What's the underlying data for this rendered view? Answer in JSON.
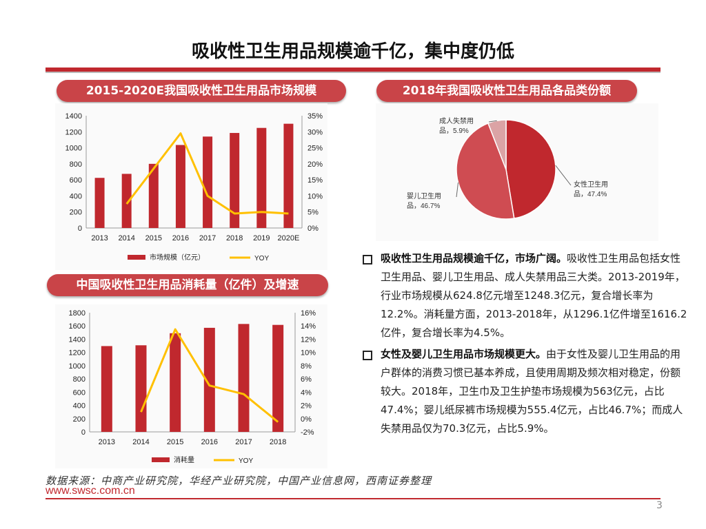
{
  "title": "吸收性卫生用品规模逾千亿，集中度仍低",
  "chart1_badge": "2015-2020E我国吸收性卫生用品市场规模",
  "chart2_badge": "中国吸收性卫生用品消耗量（亿件）及增速",
  "chart3_badge": "2018年我国吸收性卫生用品各品类份额",
  "chart_data": [
    {
      "type": "bar",
      "title": "2015-2020E我国吸收性卫生用品市场规模",
      "categories": [
        "2013",
        "2014",
        "2015",
        "2016",
        "2017",
        "2018",
        "2019",
        "2020E"
      ],
      "series": [
        {
          "name": "市场规模（亿元）",
          "values": [
            625,
            675,
            800,
            1035,
            1140,
            1185,
            1248,
            1300
          ],
          "axis": "left"
        },
        {
          "name": "YOY",
          "type": "line",
          "values_pct": [
            null,
            7.5,
            18.5,
            29.5,
            10.0,
            4.5,
            5.0,
            4.5
          ],
          "axis": "right"
        }
      ],
      "left_axis": {
        "ylim": [
          0,
          1400
        ],
        "ticks": [
          "0",
          "200",
          "400",
          "600",
          "800",
          "1000",
          "1200",
          "1400"
        ]
      },
      "right_axis": {
        "ylim": [
          0,
          35
        ],
        "ticks": [
          "0%",
          "5%",
          "10%",
          "15%",
          "20%",
          "25%",
          "30%",
          "35%"
        ]
      },
      "legend": {
        "bar": "市场规模（亿元）",
        "line": "YOY"
      }
    },
    {
      "type": "bar",
      "title": "中国吸收性卫生用品消耗量（亿件）及增速",
      "categories": [
        "2013",
        "2014",
        "2015",
        "2016",
        "2017",
        "2018"
      ],
      "series": [
        {
          "name": "消耗量",
          "values": [
            1296,
            1308,
            1490,
            1572,
            1630,
            1616
          ],
          "axis": "left"
        },
        {
          "name": "YOY",
          "type": "line",
          "values_pct": [
            null,
            1.0,
            13.5,
            5.0,
            3.7,
            -0.5
          ],
          "axis": "right"
        }
      ],
      "left_axis": {
        "ylim": [
          0,
          1800
        ],
        "ticks": [
          "0",
          "200",
          "400",
          "600",
          "800",
          "1000",
          "1200",
          "1400",
          "1600",
          "1800"
        ]
      },
      "right_axis": {
        "ylim": [
          -2,
          16
        ],
        "ticks": [
          "-2%",
          "0%",
          "2%",
          "4%",
          "6%",
          "8%",
          "10%",
          "12%",
          "14%",
          "16%"
        ]
      },
      "legend": {
        "bar": "消耗量",
        "line": "YOY"
      }
    },
    {
      "type": "pie",
      "title": "2018年我国吸收性卫生用品各品类份额",
      "slices": [
        {
          "label": "女性卫生用品",
          "value": 47.4,
          "text": "女性卫生用品，47.4%",
          "line1": "女性卫生用",
          "line2": "品，47.4%"
        },
        {
          "label": "婴儿卫生用品",
          "value": 46.7,
          "text": "婴儿卫生用品，46.7%",
          "line1": "婴儿卫生用",
          "line2": "品，46.7%"
        },
        {
          "label": "成人失禁用品",
          "value": 5.9,
          "text": "成人失禁用品，5.9%",
          "line1": "成人失禁用",
          "line2": "品，5.9%"
        }
      ],
      "colors": [
        "#c0282e",
        "#cf4c52",
        "#dba3a5"
      ]
    }
  ],
  "colors": {
    "bar": "#c0282e",
    "line": "#ffc000",
    "accent": "#c94448"
  },
  "bullets": [
    {
      "head": "吸收性卫生用品规模逾千亿，市场广阔。",
      "body": "吸收性卫生用品包括女性卫生用品、婴儿卫生用品、成人失禁用品三大类。2013-2019年，行业市场规模从624.8亿元增至1248.3亿元，复合增长率为12.2%。消耗量方面，2013-2018年，从1296.1亿件增至1616.2亿件，复合增长率为4.5%。"
    },
    {
      "head": "女性及婴儿卫生用品市场规模更大。",
      "body": "由于女性及婴儿卫生用品的用户群体的消费习惯已基本养成，且使用周期及频次相对稳定，份额较大。2018年，卫生巾及卫生护垫市场规模为563亿元，占比47.4%；婴儿纸尿裤市场规模为555.4亿元，占比46.7%；而成人失禁用品仅为70.3亿元，占比5.9%。"
    }
  ],
  "source": "数据来源：中商产业研究院，华经产业研究院，中国产业信息网，西南证券整理",
  "website": "www.swsc.com.cn",
  "page_number": "3"
}
